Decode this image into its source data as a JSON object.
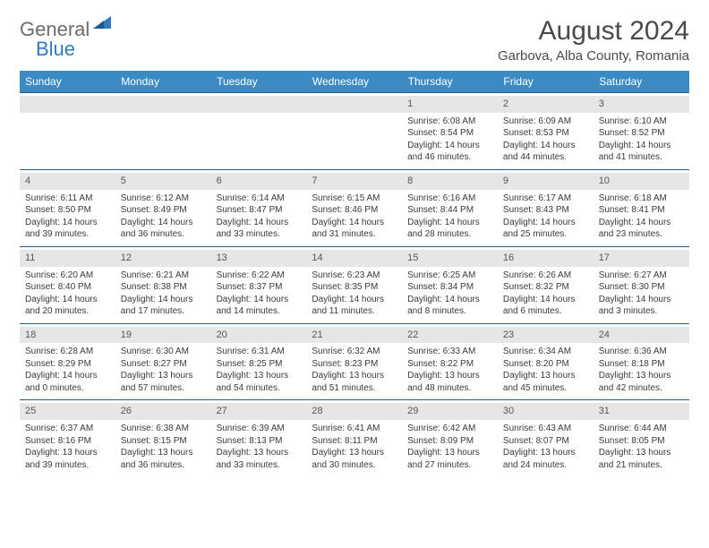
{
  "logo": {
    "general": "General",
    "blue": "Blue"
  },
  "title": "August 2024",
  "location": "Garbova, Alba County, Romania",
  "colors": {
    "header_bg": "#3b8ac4",
    "header_text": "#ffffff",
    "border": "#2c5a80",
    "daybar_bg": "#e6e6e6",
    "body_text": "#3a3a3a",
    "logo_gray": "#6c6c6c",
    "logo_blue": "#2f7bbf"
  },
  "weekdays": [
    "Sunday",
    "Monday",
    "Tuesday",
    "Wednesday",
    "Thursday",
    "Friday",
    "Saturday"
  ],
  "weeks": [
    [
      {
        "empty": true
      },
      {
        "empty": true
      },
      {
        "empty": true
      },
      {
        "empty": true
      },
      {
        "day": "1",
        "sunrise": "Sunrise: 6:08 AM",
        "sunset": "Sunset: 8:54 PM",
        "daylight": "Daylight: 14 hours and 46 minutes."
      },
      {
        "day": "2",
        "sunrise": "Sunrise: 6:09 AM",
        "sunset": "Sunset: 8:53 PM",
        "daylight": "Daylight: 14 hours and 44 minutes."
      },
      {
        "day": "3",
        "sunrise": "Sunrise: 6:10 AM",
        "sunset": "Sunset: 8:52 PM",
        "daylight": "Daylight: 14 hours and 41 minutes."
      }
    ],
    [
      {
        "day": "4",
        "sunrise": "Sunrise: 6:11 AM",
        "sunset": "Sunset: 8:50 PM",
        "daylight": "Daylight: 14 hours and 39 minutes."
      },
      {
        "day": "5",
        "sunrise": "Sunrise: 6:12 AM",
        "sunset": "Sunset: 8:49 PM",
        "daylight": "Daylight: 14 hours and 36 minutes."
      },
      {
        "day": "6",
        "sunrise": "Sunrise: 6:14 AM",
        "sunset": "Sunset: 8:47 PM",
        "daylight": "Daylight: 14 hours and 33 minutes."
      },
      {
        "day": "7",
        "sunrise": "Sunrise: 6:15 AM",
        "sunset": "Sunset: 8:46 PM",
        "daylight": "Daylight: 14 hours and 31 minutes."
      },
      {
        "day": "8",
        "sunrise": "Sunrise: 6:16 AM",
        "sunset": "Sunset: 8:44 PM",
        "daylight": "Daylight: 14 hours and 28 minutes."
      },
      {
        "day": "9",
        "sunrise": "Sunrise: 6:17 AM",
        "sunset": "Sunset: 8:43 PM",
        "daylight": "Daylight: 14 hours and 25 minutes."
      },
      {
        "day": "10",
        "sunrise": "Sunrise: 6:18 AM",
        "sunset": "Sunset: 8:41 PM",
        "daylight": "Daylight: 14 hours and 23 minutes."
      }
    ],
    [
      {
        "day": "11",
        "sunrise": "Sunrise: 6:20 AM",
        "sunset": "Sunset: 8:40 PM",
        "daylight": "Daylight: 14 hours and 20 minutes."
      },
      {
        "day": "12",
        "sunrise": "Sunrise: 6:21 AM",
        "sunset": "Sunset: 8:38 PM",
        "daylight": "Daylight: 14 hours and 17 minutes."
      },
      {
        "day": "13",
        "sunrise": "Sunrise: 6:22 AM",
        "sunset": "Sunset: 8:37 PM",
        "daylight": "Daylight: 14 hours and 14 minutes."
      },
      {
        "day": "14",
        "sunrise": "Sunrise: 6:23 AM",
        "sunset": "Sunset: 8:35 PM",
        "daylight": "Daylight: 14 hours and 11 minutes."
      },
      {
        "day": "15",
        "sunrise": "Sunrise: 6:25 AM",
        "sunset": "Sunset: 8:34 PM",
        "daylight": "Daylight: 14 hours and 8 minutes."
      },
      {
        "day": "16",
        "sunrise": "Sunrise: 6:26 AM",
        "sunset": "Sunset: 8:32 PM",
        "daylight": "Daylight: 14 hours and 6 minutes."
      },
      {
        "day": "17",
        "sunrise": "Sunrise: 6:27 AM",
        "sunset": "Sunset: 8:30 PM",
        "daylight": "Daylight: 14 hours and 3 minutes."
      }
    ],
    [
      {
        "day": "18",
        "sunrise": "Sunrise: 6:28 AM",
        "sunset": "Sunset: 8:29 PM",
        "daylight": "Daylight: 14 hours and 0 minutes."
      },
      {
        "day": "19",
        "sunrise": "Sunrise: 6:30 AM",
        "sunset": "Sunset: 8:27 PM",
        "daylight": "Daylight: 13 hours and 57 minutes."
      },
      {
        "day": "20",
        "sunrise": "Sunrise: 6:31 AM",
        "sunset": "Sunset: 8:25 PM",
        "daylight": "Daylight: 13 hours and 54 minutes."
      },
      {
        "day": "21",
        "sunrise": "Sunrise: 6:32 AM",
        "sunset": "Sunset: 8:23 PM",
        "daylight": "Daylight: 13 hours and 51 minutes."
      },
      {
        "day": "22",
        "sunrise": "Sunrise: 6:33 AM",
        "sunset": "Sunset: 8:22 PM",
        "daylight": "Daylight: 13 hours and 48 minutes."
      },
      {
        "day": "23",
        "sunrise": "Sunrise: 6:34 AM",
        "sunset": "Sunset: 8:20 PM",
        "daylight": "Daylight: 13 hours and 45 minutes."
      },
      {
        "day": "24",
        "sunrise": "Sunrise: 6:36 AM",
        "sunset": "Sunset: 8:18 PM",
        "daylight": "Daylight: 13 hours and 42 minutes."
      }
    ],
    [
      {
        "day": "25",
        "sunrise": "Sunrise: 6:37 AM",
        "sunset": "Sunset: 8:16 PM",
        "daylight": "Daylight: 13 hours and 39 minutes."
      },
      {
        "day": "26",
        "sunrise": "Sunrise: 6:38 AM",
        "sunset": "Sunset: 8:15 PM",
        "daylight": "Daylight: 13 hours and 36 minutes."
      },
      {
        "day": "27",
        "sunrise": "Sunrise: 6:39 AM",
        "sunset": "Sunset: 8:13 PM",
        "daylight": "Daylight: 13 hours and 33 minutes."
      },
      {
        "day": "28",
        "sunrise": "Sunrise: 6:41 AM",
        "sunset": "Sunset: 8:11 PM",
        "daylight": "Daylight: 13 hours and 30 minutes."
      },
      {
        "day": "29",
        "sunrise": "Sunrise: 6:42 AM",
        "sunset": "Sunset: 8:09 PM",
        "daylight": "Daylight: 13 hours and 27 minutes."
      },
      {
        "day": "30",
        "sunrise": "Sunrise: 6:43 AM",
        "sunset": "Sunset: 8:07 PM",
        "daylight": "Daylight: 13 hours and 24 minutes."
      },
      {
        "day": "31",
        "sunrise": "Sunrise: 6:44 AM",
        "sunset": "Sunset: 8:05 PM",
        "daylight": "Daylight: 13 hours and 21 minutes."
      }
    ]
  ]
}
